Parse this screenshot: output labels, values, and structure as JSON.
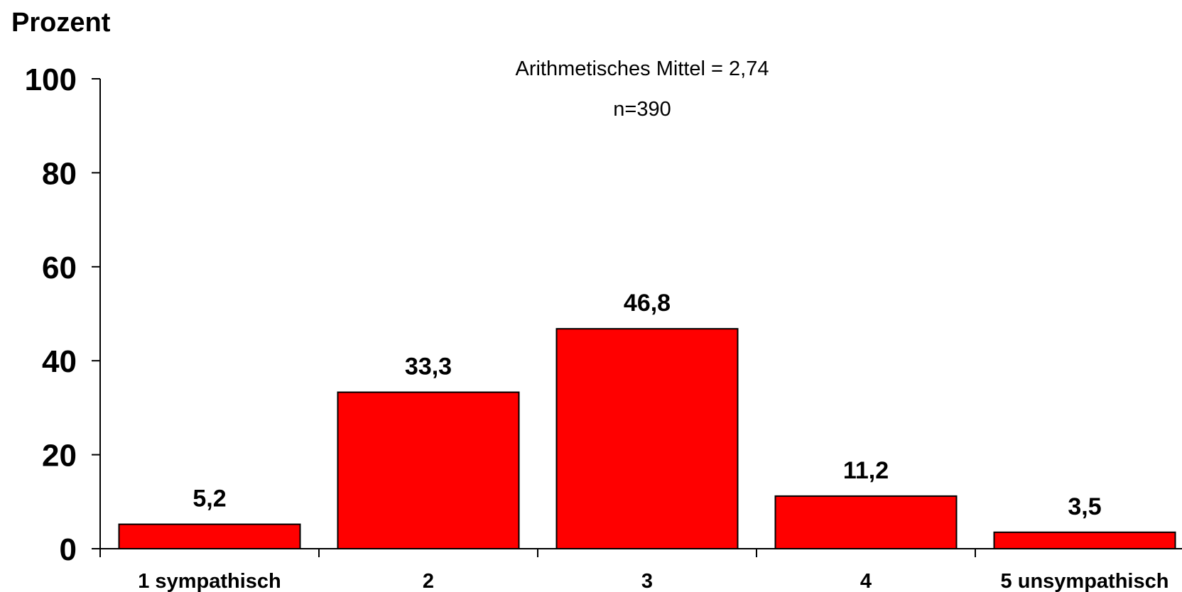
{
  "chart_data": {
    "type": "bar",
    "ylabel": "Prozent",
    "annotations": [
      "Arithmetisches Mittel = 2,74",
      "n=390"
    ],
    "categories": [
      "1 sympathisch",
      "2",
      "3",
      "4",
      "5 unsympathisch"
    ],
    "values": [
      5.2,
      33.3,
      46.8,
      11.2,
      3.5
    ],
    "value_labels": [
      "5,2",
      "33,3",
      "46,8",
      "11,2",
      "3,5"
    ],
    "ylim": [
      0,
      100
    ],
    "yticks": [
      0,
      20,
      40,
      60,
      80,
      100
    ],
    "grid": false,
    "bar_color": "#ff0000",
    "bar_edge_color": "#000000"
  }
}
